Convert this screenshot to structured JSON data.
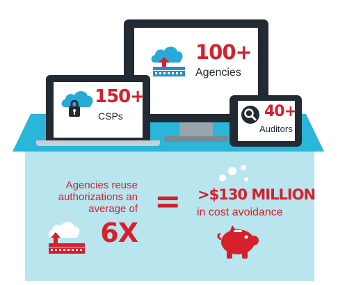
{
  "devices": {
    "monitor": {
      "stat": "100+",
      "label": "Agencies",
      "icon": "cloud-upload-building-icon"
    },
    "laptop": {
      "stat": "150+",
      "label": "CSPs",
      "icon": "cloud-lock-icon"
    },
    "tablet": {
      "stat": "40+",
      "label": "Auditors",
      "icon": "magnifier-icon"
    }
  },
  "reuse": {
    "lines": [
      "Agencies reuse",
      "authorizations an",
      "average of"
    ],
    "multiplier": "6X",
    "equals": "="
  },
  "savings": {
    "amount": ">$130 MILLION",
    "label": "in cost avoidance",
    "icon": "piggy-bank-icon"
  },
  "colors": {
    "accent": "#d6202c",
    "stage_top": "#29b6d9",
    "stage_front": "#b8e5ee",
    "device_frame": "#222a33",
    "cloud": "#29a9d6",
    "building": "#2a8fc0"
  }
}
